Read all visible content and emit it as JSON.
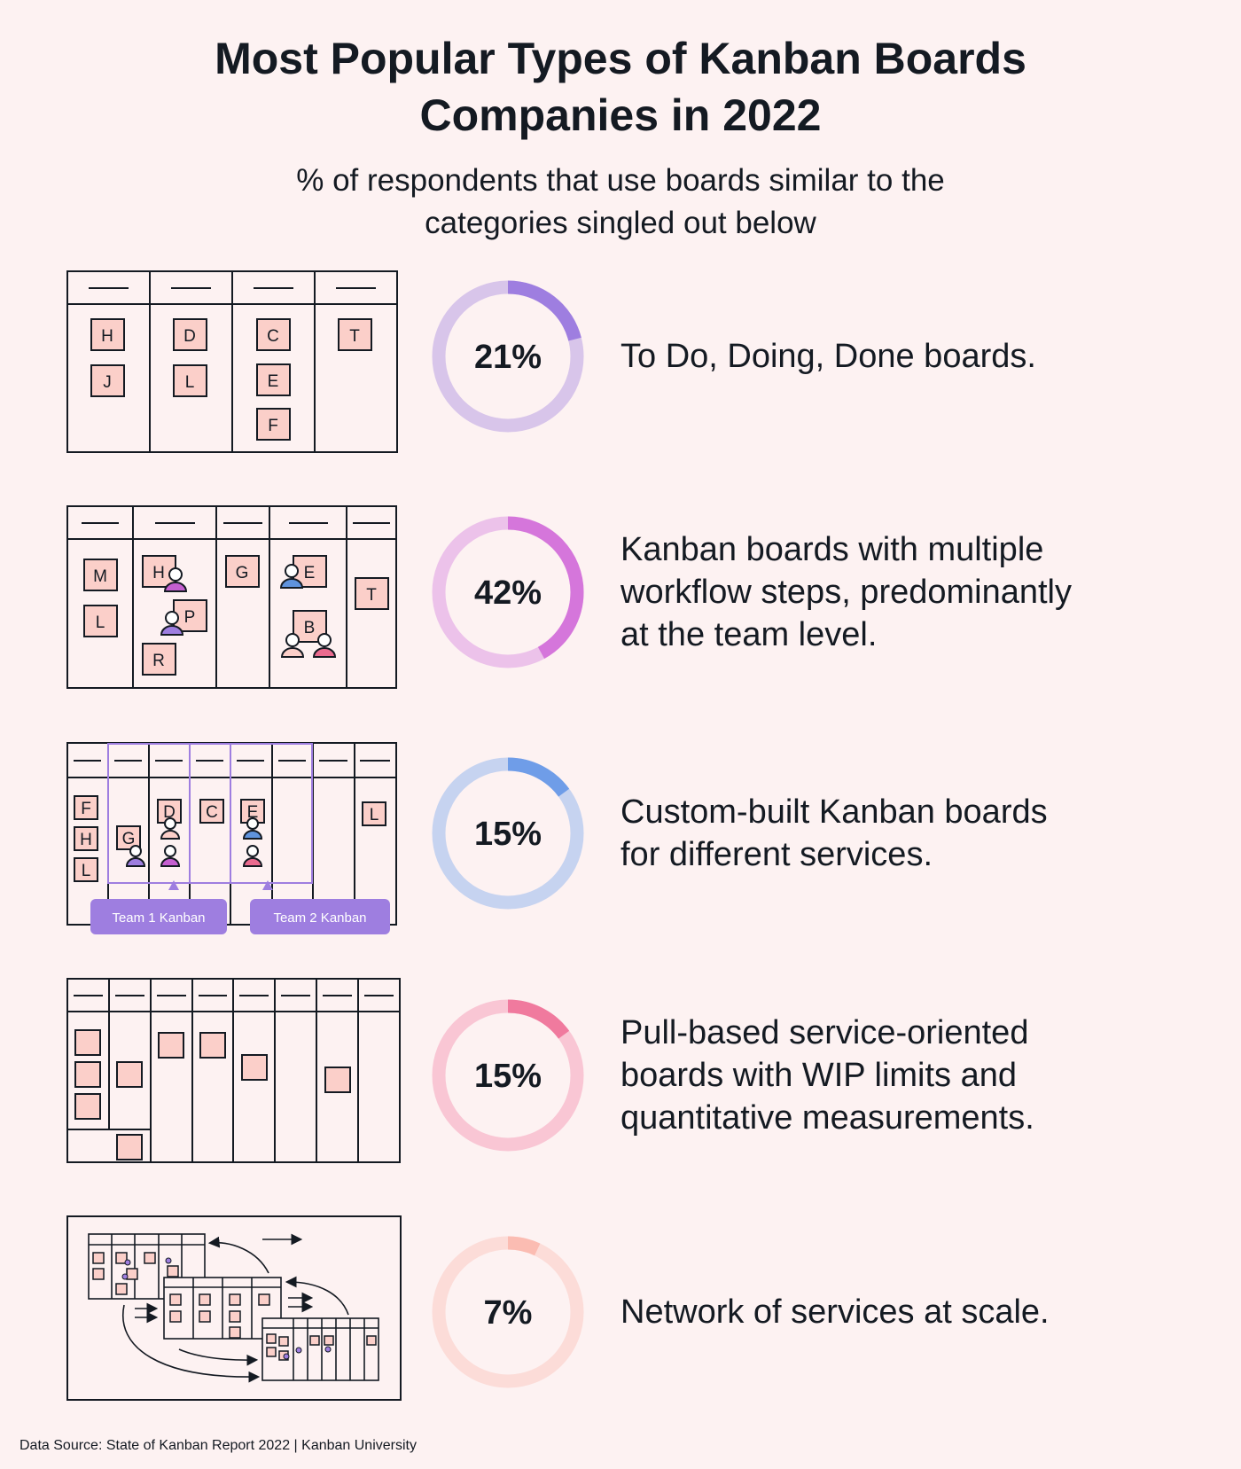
{
  "title_line1": "Most Popular Types of Kanban Boards",
  "title_line2": "Companies in 2022",
  "subtitle_line1": "% of respondents that use boards similar to the",
  "subtitle_line2": "categories singled out below",
  "team_labels": [
    "Team 1 Kanban",
    "Team 2 Kanban"
  ],
  "footer": "Data Source: State of Kanban Report 2022 | Kanban University",
  "colors": {
    "purple_light": "#d8c5ea",
    "purple": "#9e7ee0",
    "magenta_light": "#ecc2ea",
    "magenta": "#d576db",
    "blue_light": "#c6d3f0",
    "blue": "#6f9de8",
    "pink_light": "#f9c6d4",
    "pink": "#f07a9e",
    "salmon_light": "#fcdcd8",
    "salmon": "#fbbcb2"
  },
  "chart_data": {
    "type": "pie",
    "categories": [
      "To Do, Doing, Done boards.",
      "Kanban boards with multiple workflow steps, predominantly at the team level.",
      "Custom-built Kanban boards for different services.",
      "Pull-based service-oriented boards with WIP limits and quantitative measurements.",
      "Network of services at scale."
    ],
    "values": [
      21,
      42,
      15,
      15,
      7
    ],
    "unit": "%",
    "rows": [
      {
        "value": 21,
        "label": "21%",
        "lines": [
          "To Do, Doing, Done boards."
        ],
        "color": "#9e7ee0",
        "track": "#d8c5ea"
      },
      {
        "value": 42,
        "label": "42%",
        "lines": [
          "Kanban boards with multiple",
          "workflow steps, predominantly",
          "at the team level."
        ],
        "color": "#d576db",
        "track": "#ecc2ea"
      },
      {
        "value": 15,
        "label": "15%",
        "lines": [
          "Custom-built Kanban boards",
          "for different services."
        ],
        "color": "#6f9de8",
        "track": "#c6d3f0"
      },
      {
        "value": 15,
        "label": "15%",
        "lines": [
          "Pull-based service-oriented",
          "boards with WIP limits and",
          "quantitative measurements."
        ],
        "color": "#f07a9e",
        "track": "#f9c6d4"
      },
      {
        "value": 7,
        "label": "7%",
        "lines": [
          "Network of services at scale."
        ],
        "color": "#fbbcb2",
        "track": "#fcdcd8"
      }
    ]
  }
}
